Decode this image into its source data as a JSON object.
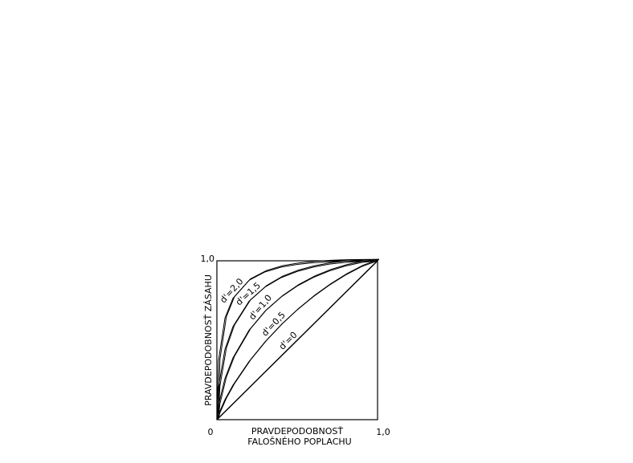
{
  "chart_data": {
    "type": "line",
    "xlabel": [
      "PRAVDEPODOBNOSŤ",
      "FALOŠNÉHO POPLACHU"
    ],
    "ylabel": "PRAVDEPODOBNOSŤ ZÁSAHU",
    "x": [
      0,
      0.01,
      0.05,
      0.1,
      0.2,
      0.3,
      0.4,
      0.5,
      0.6,
      0.7,
      0.8,
      0.9,
      1
    ],
    "series": [
      {
        "name": "d'=2,0",
        "color": "#000000",
        "values": [
          0,
          0.372,
          0.639,
          0.764,
          0.877,
          0.93,
          0.96,
          0.977,
          0.988,
          0.994,
          0.998,
          0.999,
          1
        ]
      },
      {
        "name": "d'=1,5",
        "color": "#000000",
        "values": [
          0,
          0.204,
          0.442,
          0.586,
          0.745,
          0.835,
          0.894,
          0.933,
          0.96,
          0.979,
          0.99,
          0.997,
          1
        ]
      },
      {
        "name": "d'=1,0",
        "color": "#000000",
        "values": [
          0,
          0.092,
          0.259,
          0.389,
          0.563,
          0.683,
          0.772,
          0.841,
          0.895,
          0.936,
          0.967,
          0.989,
          1
        ]
      },
      {
        "name": "d'=0,5",
        "color": "#000000",
        "values": [
          0,
          0.034,
          0.126,
          0.217,
          0.366,
          0.49,
          0.597,
          0.691,
          0.774,
          0.847,
          0.91,
          0.963,
          1
        ]
      },
      {
        "name": "d'=0",
        "color": "#000000",
        "values": [
          0,
          0.01,
          0.05,
          0.1,
          0.2,
          0.3,
          0.4,
          0.5,
          0.6,
          0.7,
          0.8,
          0.9,
          1
        ]
      }
    ],
    "xlim": [
      0,
      1
    ],
    "ylim": [
      0,
      1
    ],
    "xticks": [
      {
        "value": 0,
        "label": "0"
      },
      {
        "value": 1,
        "label": "1,0"
      }
    ],
    "yticks": [
      {
        "value": 1,
        "label": "1,0"
      }
    ]
  }
}
